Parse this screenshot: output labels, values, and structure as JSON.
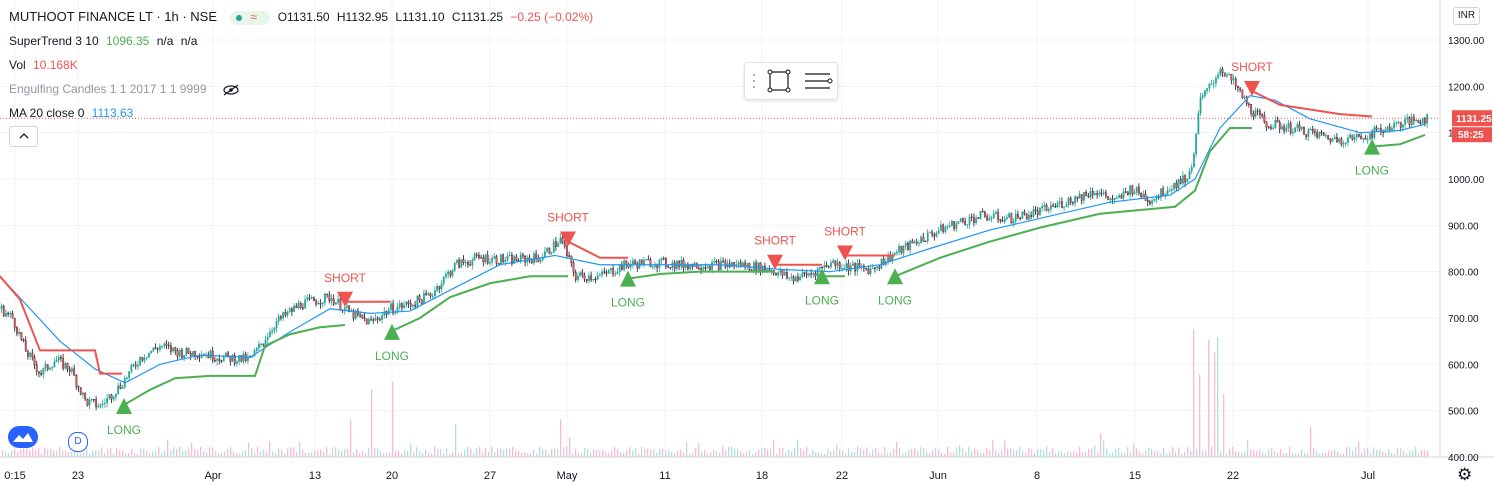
{
  "header": {
    "symbol": "MUTHOOT FINANCE LT · 1h · NSE",
    "open": "O1131.50",
    "high": "H1132.95",
    "low": "L1131.10",
    "close": "C1131.25",
    "change": "−0.25 (−0.02%)"
  },
  "indicators": {
    "supertrend_label": "SuperTrend 3 10",
    "supertrend_value": "1096.35",
    "supertrend_na1": "n/a",
    "supertrend_na2": "n/a",
    "vol_label": "Vol",
    "vol_value": "10.168K",
    "engulfing_label": "Engulfing Candles 1 1 2017 1 1 9999",
    "ma_label": "MA 20 close 0",
    "ma_value": "1113.63"
  },
  "currency_button": "INR",
  "collapse_icon": "chevron-up-icon",
  "logo_icon": "tradingview-logo-icon",
  "d_button": "D",
  "colors": {
    "up": "#26a69a",
    "down": "#ef5350",
    "supertrend_up": "#4caf50",
    "supertrend_down": "#ef5350",
    "ma": "#2196f3",
    "price_label_bg": "#ef5350",
    "grid": "#f0f3fa"
  },
  "chart_data": {
    "type": "candlestick",
    "y_axis_ticks": [
      "1300.00",
      "1200.00",
      "1100.00",
      "1000.00",
      "900.00",
      "800.00",
      "700.00",
      "600.00",
      "500.00",
      "400.00"
    ],
    "ylim": [
      400,
      1300
    ],
    "x_axis_ticks": [
      "0:15",
      "23",
      "Apr",
      "13",
      "20",
      "27",
      "May",
      "11",
      "18",
      "22",
      "Jun",
      "8",
      "15",
      "22",
      "Jul"
    ],
    "last_price": "1131.25",
    "countdown": "58:25",
    "price_path": [
      {
        "x": 0,
        "y": 720
      },
      {
        "x": 12,
        "y": 700
      },
      {
        "x": 25,
        "y": 630
      },
      {
        "x": 40,
        "y": 580
      },
      {
        "x": 55,
        "y": 610
      },
      {
        "x": 70,
        "y": 590
      },
      {
        "x": 85,
        "y": 520
      },
      {
        "x": 100,
        "y": 510
      },
      {
        "x": 120,
        "y": 555
      },
      {
        "x": 140,
        "y": 615
      },
      {
        "x": 160,
        "y": 640
      },
      {
        "x": 180,
        "y": 625
      },
      {
        "x": 200,
        "y": 625
      },
      {
        "x": 220,
        "y": 615
      },
      {
        "x": 250,
        "y": 610
      },
      {
        "x": 275,
        "y": 690
      },
      {
        "x": 300,
        "y": 730
      },
      {
        "x": 330,
        "y": 745
      },
      {
        "x": 350,
        "y": 710
      },
      {
        "x": 370,
        "y": 690
      },
      {
        "x": 390,
        "y": 720
      },
      {
        "x": 410,
        "y": 730
      },
      {
        "x": 430,
        "y": 750
      },
      {
        "x": 455,
        "y": 815
      },
      {
        "x": 480,
        "y": 830
      },
      {
        "x": 510,
        "y": 825
      },
      {
        "x": 540,
        "y": 830
      },
      {
        "x": 560,
        "y": 870
      },
      {
        "x": 575,
        "y": 790
      },
      {
        "x": 600,
        "y": 790
      },
      {
        "x": 625,
        "y": 815
      },
      {
        "x": 650,
        "y": 820
      },
      {
        "x": 680,
        "y": 815
      },
      {
        "x": 710,
        "y": 815
      },
      {
        "x": 740,
        "y": 815
      },
      {
        "x": 770,
        "y": 805
      },
      {
        "x": 790,
        "y": 785
      },
      {
        "x": 810,
        "y": 795
      },
      {
        "x": 830,
        "y": 820
      },
      {
        "x": 850,
        "y": 810
      },
      {
        "x": 870,
        "y": 805
      },
      {
        "x": 895,
        "y": 840
      },
      {
        "x": 920,
        "y": 870
      },
      {
        "x": 950,
        "y": 900
      },
      {
        "x": 980,
        "y": 920
      },
      {
        "x": 1010,
        "y": 915
      },
      {
        "x": 1040,
        "y": 930
      },
      {
        "x": 1070,
        "y": 955
      },
      {
        "x": 1095,
        "y": 975
      },
      {
        "x": 1115,
        "y": 950
      },
      {
        "x": 1130,
        "y": 980
      },
      {
        "x": 1150,
        "y": 955
      },
      {
        "x": 1175,
        "y": 990
      },
      {
        "x": 1190,
        "y": 1010
      },
      {
        "x": 1200,
        "y": 1170
      },
      {
        "x": 1210,
        "y": 1200
      },
      {
        "x": 1220,
        "y": 1240
      },
      {
        "x": 1235,
        "y": 1200
      },
      {
        "x": 1250,
        "y": 1150
      },
      {
        "x": 1265,
        "y": 1120
      },
      {
        "x": 1290,
        "y": 1110
      },
      {
        "x": 1310,
        "y": 1100
      },
      {
        "x": 1335,
        "y": 1085
      },
      {
        "x": 1360,
        "y": 1090
      },
      {
        "x": 1380,
        "y": 1105
      },
      {
        "x": 1400,
        "y": 1120
      },
      {
        "x": 1425,
        "y": 1131
      }
    ],
    "ma20": [
      {
        "x": 0,
        "y": 790
      },
      {
        "x": 30,
        "y": 720
      },
      {
        "x": 60,
        "y": 650
      },
      {
        "x": 95,
        "y": 590
      },
      {
        "x": 125,
        "y": 560
      },
      {
        "x": 160,
        "y": 600
      },
      {
        "x": 200,
        "y": 620
      },
      {
        "x": 250,
        "y": 615
      },
      {
        "x": 290,
        "y": 670
      },
      {
        "x": 330,
        "y": 720
      },
      {
        "x": 370,
        "y": 710
      },
      {
        "x": 410,
        "y": 715
      },
      {
        "x": 450,
        "y": 760
      },
      {
        "x": 500,
        "y": 815
      },
      {
        "x": 555,
        "y": 835
      },
      {
        "x": 600,
        "y": 815
      },
      {
        "x": 660,
        "y": 815
      },
      {
        "x": 720,
        "y": 815
      },
      {
        "x": 780,
        "y": 805
      },
      {
        "x": 830,
        "y": 800
      },
      {
        "x": 880,
        "y": 815
      },
      {
        "x": 930,
        "y": 850
      },
      {
        "x": 990,
        "y": 890
      },
      {
        "x": 1050,
        "y": 920
      },
      {
        "x": 1110,
        "y": 950
      },
      {
        "x": 1170,
        "y": 965
      },
      {
        "x": 1195,
        "y": 1000
      },
      {
        "x": 1220,
        "y": 1110
      },
      {
        "x": 1250,
        "y": 1180
      },
      {
        "x": 1275,
        "y": 1170
      },
      {
        "x": 1310,
        "y": 1130
      },
      {
        "x": 1360,
        "y": 1100
      },
      {
        "x": 1400,
        "y": 1105
      },
      {
        "x": 1425,
        "y": 1118
      }
    ],
    "supertrend_segments": [
      {
        "trend": "down",
        "points": [
          {
            "x": 0,
            "y": 790
          },
          {
            "x": 20,
            "y": 740
          },
          {
            "x": 40,
            "y": 630
          },
          {
            "x": 95,
            "y": 630
          },
          {
            "x": 100,
            "y": 580
          },
          {
            "x": 122,
            "y": 580
          }
        ]
      },
      {
        "trend": "up",
        "points": [
          {
            "x": 122,
            "y": 510
          },
          {
            "x": 150,
            "y": 545
          },
          {
            "x": 175,
            "y": 570
          },
          {
            "x": 210,
            "y": 575
          },
          {
            "x": 255,
            "y": 575
          },
          {
            "x": 265,
            "y": 640
          },
          {
            "x": 290,
            "y": 665
          },
          {
            "x": 320,
            "y": 680
          },
          {
            "x": 345,
            "y": 685
          }
        ]
      },
      {
        "trend": "down",
        "points": [
          {
            "x": 345,
            "y": 735
          },
          {
            "x": 390,
            "y": 735
          }
        ]
      },
      {
        "trend": "up",
        "points": [
          {
            "x": 390,
            "y": 670
          },
          {
            "x": 420,
            "y": 700
          },
          {
            "x": 450,
            "y": 745
          },
          {
            "x": 490,
            "y": 775
          },
          {
            "x": 530,
            "y": 790
          },
          {
            "x": 568,
            "y": 790
          }
        ]
      },
      {
        "trend": "down",
        "points": [
          {
            "x": 568,
            "y": 865
          },
          {
            "x": 600,
            "y": 830
          },
          {
            "x": 628,
            "y": 830
          }
        ]
      },
      {
        "trend": "up",
        "points": [
          {
            "x": 628,
            "y": 785
          },
          {
            "x": 660,
            "y": 795
          },
          {
            "x": 700,
            "y": 800
          },
          {
            "x": 775,
            "y": 800
          }
        ]
      },
      {
        "trend": "down",
        "points": [
          {
            "x": 775,
            "y": 815
          },
          {
            "x": 822,
            "y": 815
          }
        ]
      },
      {
        "trend": "up",
        "points": [
          {
            "x": 822,
            "y": 790
          },
          {
            "x": 845,
            "y": 790
          }
        ]
      },
      {
        "trend": "down",
        "points": [
          {
            "x": 845,
            "y": 835
          },
          {
            "x": 895,
            "y": 835
          }
        ]
      },
      {
        "trend": "up",
        "points": [
          {
            "x": 895,
            "y": 790
          },
          {
            "x": 940,
            "y": 830
          },
          {
            "x": 990,
            "y": 865
          },
          {
            "x": 1040,
            "y": 895
          },
          {
            "x": 1100,
            "y": 925
          },
          {
            "x": 1175,
            "y": 940
          },
          {
            "x": 1195,
            "y": 975
          },
          {
            "x": 1210,
            "y": 1060
          },
          {
            "x": 1230,
            "y": 1110
          },
          {
            "x": 1252,
            "y": 1110
          }
        ]
      },
      {
        "trend": "down",
        "points": [
          {
            "x": 1252,
            "y": 1190
          },
          {
            "x": 1280,
            "y": 1160
          },
          {
            "x": 1310,
            "y": 1150
          },
          {
            "x": 1340,
            "y": 1140
          },
          {
            "x": 1372,
            "y": 1135
          }
        ]
      },
      {
        "trend": "up",
        "points": [
          {
            "x": 1372,
            "y": 1070
          },
          {
            "x": 1400,
            "y": 1075
          },
          {
            "x": 1425,
            "y": 1095
          }
        ]
      }
    ],
    "signals": [
      {
        "type": "LONG",
        "x": 124,
        "y": 510
      },
      {
        "type": "SHORT",
        "x": 345,
        "y": 735
      },
      {
        "type": "LONG",
        "x": 392,
        "y": 670
      },
      {
        "type": "SHORT",
        "x": 568,
        "y": 865
      },
      {
        "type": "LONG",
        "x": 628,
        "y": 785
      },
      {
        "type": "SHORT",
        "x": 775,
        "y": 815
      },
      {
        "type": "LONG",
        "x": 822,
        "y": 790
      },
      {
        "type": "SHORT",
        "x": 845,
        "y": 835
      },
      {
        "type": "LONG",
        "x": 895,
        "y": 790
      },
      {
        "type": "SHORT",
        "x": 1252,
        "y": 1190
      },
      {
        "type": "LONG",
        "x": 1372,
        "y": 1070
      }
    ],
    "volume_spikes": [
      {
        "x": 1193,
        "v": 0.85
      },
      {
        "x": 1200,
        "v": 0.55
      },
      {
        "x": 1207,
        "v": 0.78
      },
      {
        "x": 1213,
        "v": 0.7
      },
      {
        "x": 1218,
        "v": 0.8
      },
      {
        "x": 1224,
        "v": 0.42
      },
      {
        "x": 392,
        "v": 0.5
      },
      {
        "x": 372,
        "v": 0.45
      },
      {
        "x": 350,
        "v": 0.25
      },
      {
        "x": 560,
        "v": 0.25
      },
      {
        "x": 455,
        "v": 0.22
      },
      {
        "x": 1310,
        "v": 0.2
      },
      {
        "x": 1100,
        "v": 0.16
      }
    ]
  }
}
